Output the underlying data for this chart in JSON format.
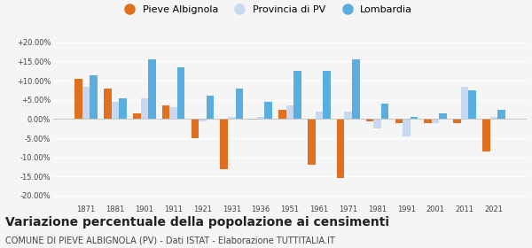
{
  "years": [
    1871,
    1881,
    1901,
    1911,
    1921,
    1931,
    1936,
    1951,
    1961,
    1971,
    1981,
    1991,
    2001,
    2011,
    2021
  ],
  "pieve": [
    10.5,
    8.0,
    1.5,
    3.5,
    -5.0,
    -13.0,
    -0.2,
    2.5,
    -12.0,
    -15.5,
    -0.5,
    -1.0,
    -1.0,
    -1.0,
    -8.5
  ],
  "provincia": [
    8.5,
    4.5,
    5.5,
    3.0,
    -0.5,
    0.5,
    0.5,
    3.5,
    2.0,
    2.0,
    -2.5,
    -4.5,
    -1.0,
    8.5,
    0.5
  ],
  "lombardia": [
    11.5,
    5.5,
    15.5,
    13.5,
    6.0,
    8.0,
    4.5,
    12.5,
    12.5,
    15.5,
    4.0,
    0.5,
    1.5,
    7.5,
    2.5
  ],
  "pieve_color": "#e07020",
  "provincia_color": "#c8d8f0",
  "lombardia_color": "#5aaede",
  "bg_color": "#f5f5f5",
  "grid_color": "#ffffff",
  "title": "Variazione percentuale della popolazione ai censimenti",
  "subtitle": "COMUNE DI PIEVE ALBIGNOLA (PV) - Dati ISTAT - Elaborazione TUTTITALIA.IT",
  "legend_labels": [
    "Pieve Albignola",
    "Provincia di PV",
    "Lombardia"
  ],
  "ylim": [
    -22,
    22
  ],
  "yticks": [
    -20,
    -15,
    -10,
    -5,
    0,
    5,
    10,
    15,
    20
  ],
  "title_fontsize": 10,
  "subtitle_fontsize": 7,
  "bar_width": 0.26
}
